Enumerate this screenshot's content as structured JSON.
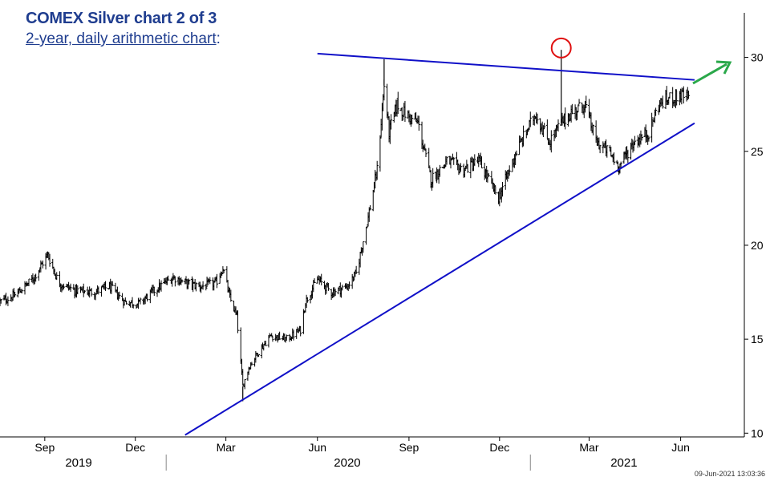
{
  "header": {
    "title": "COMEX Silver chart 2 of 3",
    "subtitle": "2-year, daily arithmetic chart",
    "subtitle_suffix": ":"
  },
  "timestamp": "09-Jun-2021 13:03:36",
  "colors": {
    "title": "#1f3d8f",
    "price_bars": "#000000",
    "trendlines": "#1010c8",
    "highlight_circle": "#e01010",
    "breakout_arrow": "#2aa84a"
  },
  "chart_data": {
    "type": "line",
    "style": "daily OHLC price bars",
    "y_axis": {
      "position": "right",
      "ylim": [
        9.8,
        32.2
      ],
      "ticks": [
        10,
        15,
        20,
        25,
        30
      ],
      "tick_labels": [
        "10",
        "15",
        "20",
        "25",
        "30"
      ]
    },
    "x_axis": {
      "xlim": [
        "2019-07-18",
        "2021-08-04"
      ],
      "month_ticks": [
        {
          "date": "2019-09-01",
          "label": "Sep"
        },
        {
          "date": "2019-12-01",
          "label": "Dec"
        },
        {
          "date": "2020-03-01",
          "label": "Mar"
        },
        {
          "date": "2020-06-01",
          "label": "Jun"
        },
        {
          "date": "2020-09-01",
          "label": "Sep"
        },
        {
          "date": "2020-12-01",
          "label": "Dec"
        },
        {
          "date": "2021-03-01",
          "label": "Mar"
        },
        {
          "date": "2021-06-01",
          "label": "Jun"
        }
      ],
      "year_labels": [
        {
          "label": "2019",
          "center": "2019-10-05"
        },
        {
          "label": "2020",
          "center": "2020-07-01"
        },
        {
          "label": "2021",
          "center": "2021-04-05"
        }
      ],
      "year_separators": [
        "2020-01-01",
        "2021-01-01"
      ]
    },
    "price_path": {
      "dates": [
        "2019-07-18",
        "2019-08-01",
        "2019-08-20",
        "2019-09-04",
        "2019-09-15",
        "2019-10-01",
        "2019-10-20",
        "2019-11-05",
        "2019-11-20",
        "2019-12-05",
        "2019-12-20",
        "2020-01-08",
        "2020-01-20",
        "2020-02-05",
        "2020-02-20",
        "2020-02-27",
        "2020-03-05",
        "2020-03-12",
        "2020-03-18",
        "2020-03-24",
        "2020-04-01",
        "2020-04-15",
        "2020-05-01",
        "2020-05-15",
        "2020-05-20",
        "2020-06-01",
        "2020-06-15",
        "2020-07-01",
        "2020-07-10",
        "2020-07-22",
        "2020-07-31",
        "2020-08-07",
        "2020-08-12",
        "2020-08-20",
        "2020-08-28",
        "2020-09-10",
        "2020-09-23",
        "2020-10-10",
        "2020-10-25",
        "2020-11-10",
        "2020-11-30",
        "2020-12-18",
        "2021-01-06",
        "2021-01-20",
        "2021-02-01",
        "2021-02-10",
        "2021-02-25",
        "2021-03-08",
        "2021-03-20",
        "2021-03-31",
        "2021-04-15",
        "2021-04-30",
        "2021-05-10",
        "2021-05-20",
        "2021-06-01",
        "2021-06-09"
      ],
      "close": [
        17.0,
        17.3,
        18.2,
        19.5,
        18.0,
        17.6,
        17.5,
        17.8,
        17.0,
        16.9,
        17.6,
        18.3,
        18.0,
        17.8,
        18.0,
        18.8,
        17.2,
        16.2,
        12.5,
        13.5,
        14.2,
        15.2,
        15.0,
        15.5,
        17.0,
        18.2,
        17.5,
        17.8,
        18.5,
        21.5,
        24.0,
        28.5,
        26.0,
        27.5,
        27.0,
        26.5,
        23.5,
        24.5,
        24.0,
        24.5,
        22.5,
        25.0,
        27.0,
        25.5,
        26.5,
        27.0,
        27.5,
        25.5,
        25.0,
        24.2,
        25.5,
        26.0,
        27.5,
        27.8,
        28.0,
        27.8
      ]
    },
    "peaks": [
      {
        "date": "2020-08-07",
        "value": 29.9
      },
      {
        "date": "2021-02-01",
        "value": 30.4
      }
    ],
    "lows": [
      {
        "date": "2020-03-18",
        "value": 11.7
      },
      {
        "date": "2021-03-31",
        "value": 23.8
      }
    ],
    "trendlines": [
      {
        "name": "resistance",
        "from": {
          "date": "2020-06-01",
          "value": 30.2
        },
        "to": {
          "date": "2021-06-15",
          "value": 28.8
        }
      },
      {
        "name": "support",
        "from": {
          "date": "2020-01-20",
          "value": 9.9
        },
        "to": {
          "date": "2021-06-15",
          "value": 26.5
        }
      }
    ],
    "annotations": [
      {
        "type": "circle",
        "date": "2021-02-01",
        "value": 30.5
      },
      {
        "type": "arrow",
        "direction": "up-right"
      }
    ],
    "grid": false,
    "legend": "none"
  }
}
